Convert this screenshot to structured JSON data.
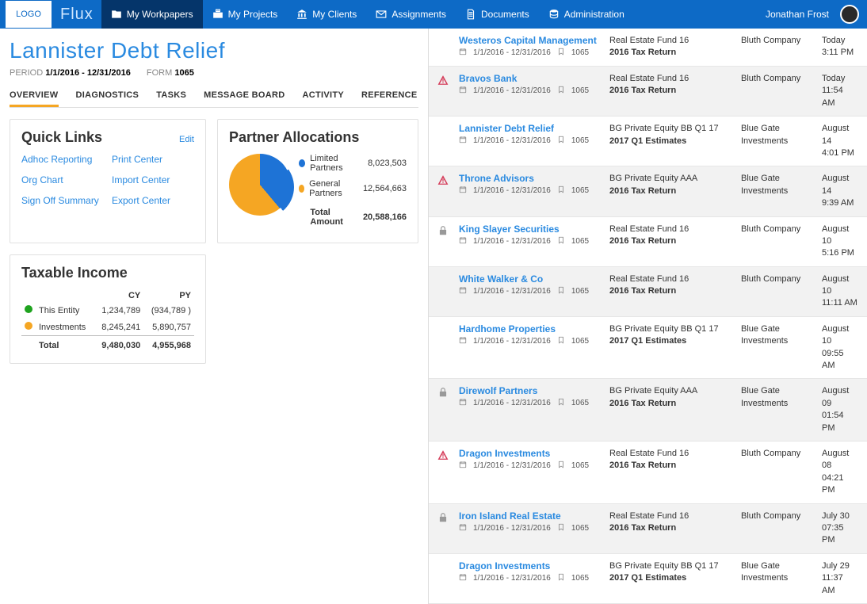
{
  "colors": {
    "navbar": "#0d6ac6",
    "navbar_active": "#05356a",
    "accent_orange": "#f5a623",
    "link_blue": "#2a8ae0",
    "pie_blue": "#1e73d6",
    "pie_orange": "#f5a623",
    "dot_green": "#1fa31f",
    "dot_yellow": "#f5a623",
    "warn_red": "#d53f5c",
    "lock_grey": "#999",
    "row_alt_bg": "#f2f2f2"
  },
  "topnav": {
    "logo": "LOGO",
    "brand": "Flux",
    "items": [
      {
        "label": "My Workpapers",
        "icon": "folder"
      },
      {
        "label": "My Projects",
        "icon": "briefcase"
      },
      {
        "label": "My Clients",
        "icon": "bank"
      },
      {
        "label": "Assignments",
        "icon": "mail"
      },
      {
        "label": "Documents",
        "icon": "doc"
      },
      {
        "label": "Administration",
        "icon": "db"
      }
    ],
    "active_index": 0,
    "user_name": "Jonathan Frost"
  },
  "header": {
    "title": "Lannister Debt Relief",
    "period_label": "PERIOD",
    "period_value": "1/1/2016 - 12/31/2016",
    "form_label": "FORM",
    "form_value": "1065"
  },
  "tabs": {
    "items": [
      "OVERVIEW",
      "DIAGNOSTICS",
      "TASKS",
      "MESSAGE BOARD",
      "ACTIVITY",
      "REFERENCE"
    ],
    "active_index": 0
  },
  "quick_links": {
    "title": "Quick Links",
    "edit": "Edit",
    "links": [
      "Adhoc Reporting",
      "Print Center",
      "Org Chart",
      "Import Center",
      "Sign Off Summary",
      "Export Center"
    ]
  },
  "partner_allocations": {
    "title": "Partner Allocations",
    "pie": {
      "limited_deg": 140,
      "colors": {
        "limited": "#1e73d6",
        "general": "#f5a623"
      },
      "exploded_slice": true
    },
    "rows": [
      {
        "label": "Limited Partners",
        "value": "8,023,503",
        "color": "#1e73d6"
      },
      {
        "label": "General Partners",
        "value": "12,564,663",
        "color": "#f5a623"
      }
    ],
    "total_label": "Total Amount",
    "total_value": "20,588,166"
  },
  "taxable_income": {
    "title": "Taxable Income",
    "col_cy": "CY",
    "col_py": "PY",
    "rows": [
      {
        "dot": "#1fa31f",
        "label": "This Entity",
        "cy": "1,234,789",
        "py": "(934,789 )"
      },
      {
        "dot": "#f5a623",
        "label": "Investments",
        "cy": "8,245,241",
        "py": "5,890,757"
      }
    ],
    "total_label": "Total",
    "total_cy": "9,480,030",
    "total_py": "4,955,968"
  },
  "workpapers": {
    "period_text": "1/1/2016 - 12/31/2016",
    "form_badge": "1065",
    "rows": [
      {
        "status": "",
        "name": "Westeros Capital Management",
        "fund": "Real Estate Fund 16",
        "fund_line2": "2016 Tax Return",
        "company": "Bluth Company",
        "time_l1": "Today",
        "time_l2": "3:11 PM",
        "alt": false
      },
      {
        "status": "warn",
        "name": "Bravos Bank",
        "fund": "Real Estate Fund 16",
        "fund_line2": "2016 Tax Return",
        "company": "Bluth Company",
        "time_l1": "Today",
        "time_l2": "11:54 AM",
        "alt": true
      },
      {
        "status": "",
        "name": "Lannister Debt Relief",
        "fund": "BG Private Equity BB Q1 17",
        "fund_line2": "2017 Q1 Estimates",
        "company": "Blue Gate Investments",
        "time_l1": "August 14",
        "time_l2": "4:01 PM",
        "alt": false
      },
      {
        "status": "warn",
        "name": "Throne Advisors",
        "fund": "BG Private Equity AAA",
        "fund_line2": "2016 Tax Return",
        "company": "Blue Gate Investments",
        "time_l1": "August 14",
        "time_l2": "9:39 AM",
        "alt": true
      },
      {
        "status": "lock",
        "name": "King Slayer Securities",
        "fund": "Real Estate Fund 16",
        "fund_line2": "2016 Tax Return",
        "company": "Bluth Company",
        "time_l1": "August 10",
        "time_l2": "5:16 PM",
        "alt": false
      },
      {
        "status": "",
        "name": "White Walker & Co",
        "fund": "Real Estate Fund 16",
        "fund_line2": "2016 Tax Return",
        "company": "Bluth Company",
        "time_l1": "August 10",
        "time_l2": "11:11 AM",
        "alt": true
      },
      {
        "status": "",
        "name": "Hardhome Properties",
        "fund": "BG Private Equity BB Q1 17",
        "fund_line2": "2017 Q1 Estimates",
        "company": "Blue Gate Investments",
        "time_l1": "August 10",
        "time_l2": "09:55 AM",
        "alt": false
      },
      {
        "status": "lock",
        "name": "Direwolf Partners",
        "fund": "BG Private Equity AAA",
        "fund_line2": "2016 Tax Return",
        "company": "Blue Gate Investments",
        "time_l1": "August 09",
        "time_l2": "01:54 PM",
        "alt": true
      },
      {
        "status": "warn",
        "name": "Dragon Investments",
        "fund": "Real Estate Fund 16",
        "fund_line2": "2016 Tax Return",
        "company": "Bluth Company",
        "time_l1": "August 08",
        "time_l2": "04:21 PM",
        "alt": false
      },
      {
        "status": "lock",
        "name": "Iron Island Real Estate",
        "fund": "Real Estate Fund 16",
        "fund_line2": "2016 Tax Return",
        "company": "Bluth Company",
        "time_l1": "July 30",
        "time_l2": "07:35 PM",
        "alt": true
      },
      {
        "status": "",
        "name": "Dragon Investments",
        "fund": "BG Private Equity BB Q1 17",
        "fund_line2": "2017 Q1 Estimates",
        "company": "Blue Gate Investments",
        "time_l1": "July 29",
        "time_l2": "11:37 AM",
        "alt": false
      }
    ]
  }
}
